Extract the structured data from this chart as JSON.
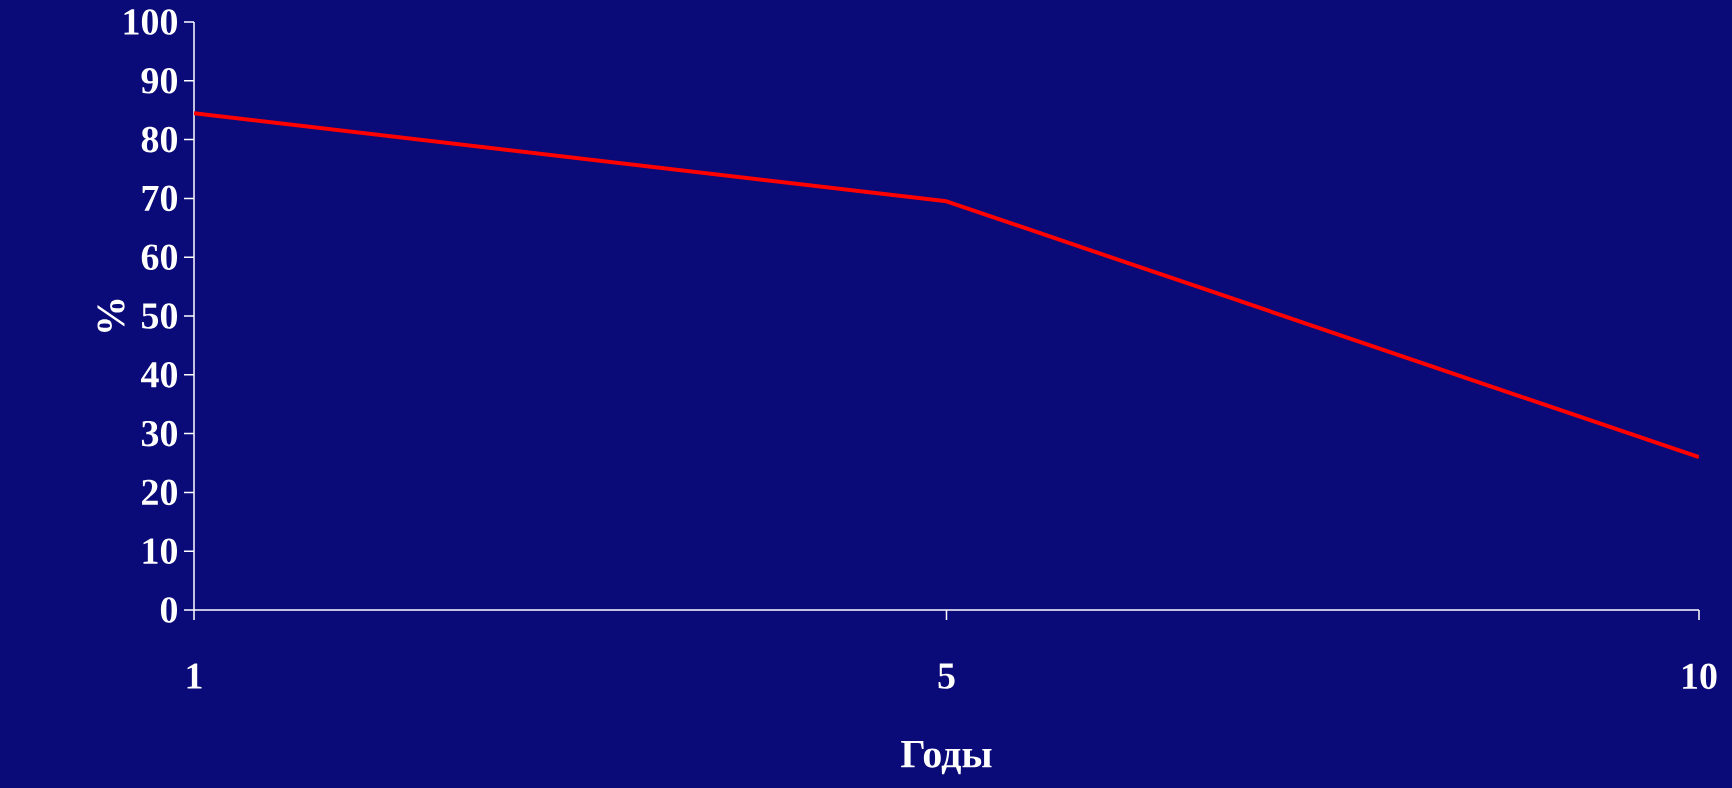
{
  "chart_data": {
    "type": "line",
    "xlabel": "Годы",
    "ylabel": "%",
    "categories": [
      "1",
      "5",
      "10"
    ],
    "series": [
      {
        "color": "#ff0000",
        "values": [
          84.5,
          69.5,
          26
        ]
      }
    ],
    "ylim": [
      0,
      100
    ],
    "yticks": [
      0,
      10,
      20,
      30,
      40,
      50,
      60,
      70,
      80,
      90,
      100
    ],
    "marker": "none",
    "line_style": "solid"
  }
}
